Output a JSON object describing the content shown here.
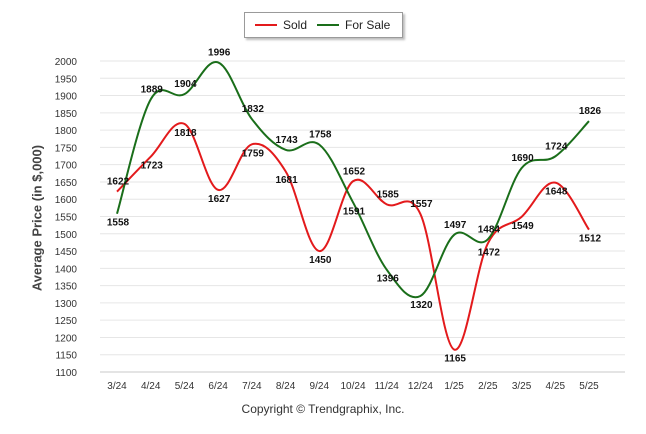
{
  "chart_data": {
    "type": "line",
    "title": "",
    "ylabel": "Average Price (in $,000)",
    "xlabel": "",
    "ylim": [
      1100,
      2000
    ],
    "yticks": [
      1100,
      1150,
      1200,
      1250,
      1300,
      1350,
      1400,
      1450,
      1500,
      1550,
      1600,
      1650,
      1700,
      1750,
      1800,
      1850,
      1900,
      1950,
      2000
    ],
    "categories": [
      "3/24",
      "4/24",
      "5/24",
      "6/24",
      "7/24",
      "8/24",
      "9/24",
      "10/24",
      "11/24",
      "12/24",
      "1/25",
      "2/25",
      "3/25",
      "4/25",
      "5/25"
    ],
    "series": [
      {
        "name": "Sold",
        "color": "#e31a1c",
        "values": [
          1622,
          1723,
          1818,
          1627,
          1759,
          1681,
          1450,
          1652,
          1585,
          1557,
          1165,
          1472,
          1549,
          1648,
          1512
        ]
      },
      {
        "name": "For Sale",
        "color": "#1a6e1a",
        "values": [
          1558,
          1889,
          1904,
          1996,
          1832,
          1743,
          1758,
          1591,
          1396,
          1320,
          1497,
          1484,
          1690,
          1724,
          1826
        ]
      }
    ],
    "grid": true,
    "legend_position": "top-center",
    "credit": "Copyright © Trendgraphix, Inc."
  }
}
